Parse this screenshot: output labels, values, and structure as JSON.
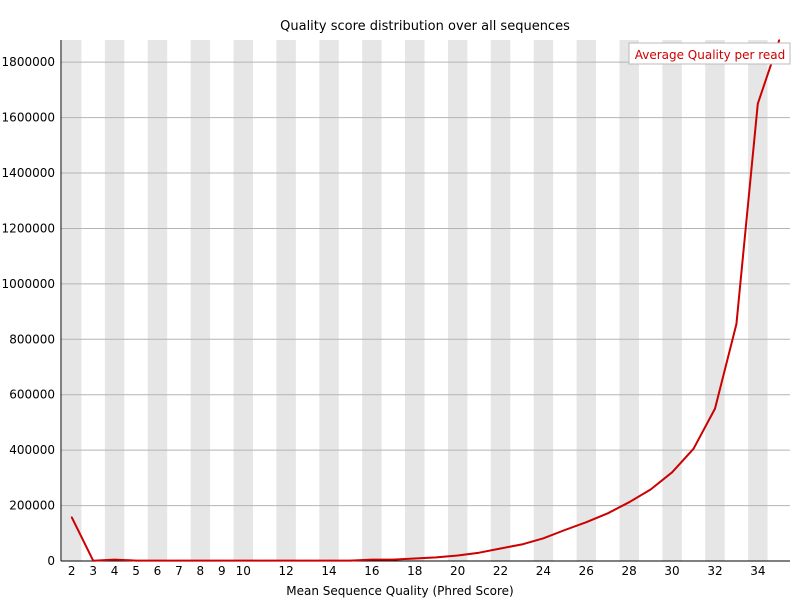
{
  "chart_data": {
    "type": "line",
    "title": "Quality score distribution over all sequences",
    "xlabel": "Mean Sequence Quality (Phred Score)",
    "ylabel": "",
    "x": [
      2,
      3,
      4,
      5,
      6,
      7,
      8,
      9,
      10,
      11,
      12,
      13,
      14,
      15,
      16,
      17,
      18,
      19,
      20,
      21,
      22,
      23,
      24,
      25,
      26,
      27,
      28,
      29,
      30,
      31,
      32,
      33,
      34,
      35
    ],
    "x_tick_labels": [
      "2",
      "3",
      "4",
      "5",
      "6",
      "7",
      "8",
      "9",
      "10",
      "12",
      "14",
      "16",
      "18",
      "20",
      "22",
      "24",
      "26",
      "28",
      "30",
      "32",
      "34"
    ],
    "x_tick_values": [
      2,
      3,
      4,
      5,
      6,
      7,
      8,
      9,
      10,
      12,
      14,
      16,
      18,
      20,
      22,
      24,
      26,
      28,
      30,
      32,
      34
    ],
    "y_ticks": [
      0,
      200000,
      400000,
      600000,
      800000,
      1000000,
      1200000,
      1400000,
      1600000,
      1800000
    ],
    "ylim": [
      0,
      1880000
    ],
    "series": [
      {
        "name": "Average Quality per read",
        "color": "#cc0000",
        "values": [
          158000,
          1000,
          5000,
          1500,
          1500,
          1500,
          1500,
          1500,
          1500,
          1500,
          1500,
          1500,
          1500,
          1500,
          5000,
          5000,
          9000,
          13000,
          20000,
          30000,
          45000,
          60000,
          82000,
          112000,
          140000,
          172000,
          212000,
          258000,
          320000,
          405000,
          550000,
          855000,
          1650000,
          1880000
        ]
      }
    ],
    "grid": true,
    "legend_position": "top-right",
    "band_colors": [
      "#e6e6e6",
      "#ffffff"
    ]
  }
}
